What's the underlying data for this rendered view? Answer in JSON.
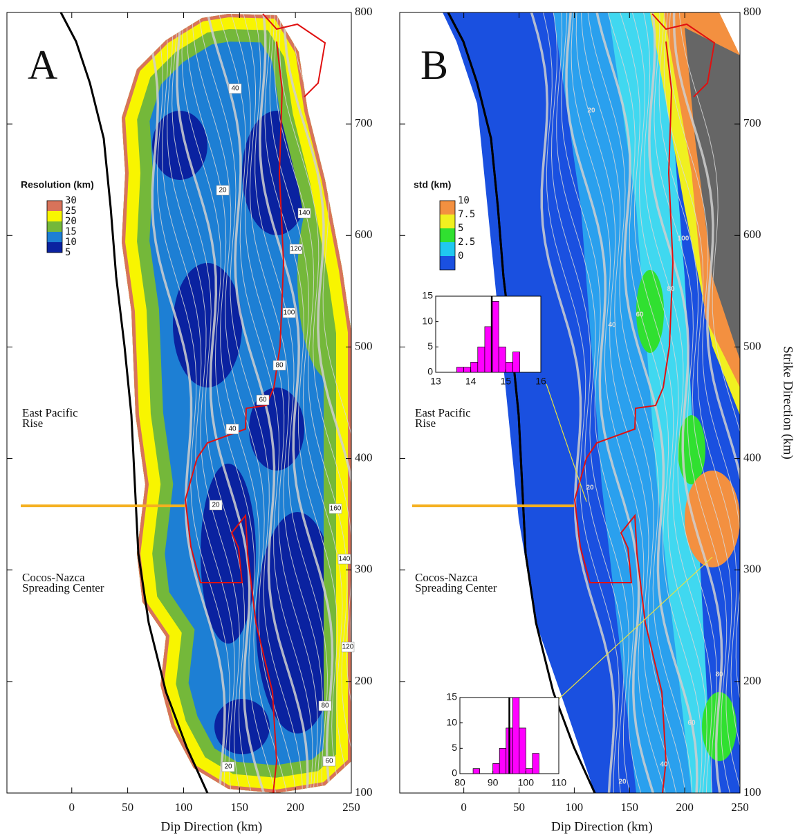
{
  "panels": [
    {
      "label": "A",
      "xlim": [
        -58,
        250
      ],
      "ylim": [
        100,
        800
      ],
      "xticks": [
        0,
        50,
        100,
        150,
        200,
        250
      ],
      "yticks": [
        100,
        200,
        300,
        400,
        500,
        600,
        700,
        800
      ],
      "xlabel": "Dip Direction (km)",
      "legend": {
        "title": "Resolution (km)",
        "levels": [
          30,
          25,
          20,
          15,
          10,
          5
        ],
        "colors": [
          "#d8735a",
          "#f8f500",
          "#74b83a",
          "#1d7fd4",
          "#0a22a0"
        ]
      },
      "places": [
        [
          "East Pacific",
          "Rise"
        ],
        [
          "Cocos-Nazca",
          "Spreading Center"
        ]
      ],
      "contour_labels": [
        "40",
        "20",
        "140",
        "120",
        "100",
        "80",
        "60",
        "40",
        "20",
        "160",
        "140",
        "120",
        "80",
        "60",
        "20"
      ]
    },
    {
      "label": "B",
      "xlim": [
        -58,
        250
      ],
      "ylim": [
        100,
        800
      ],
      "xticks": [
        0,
        50,
        100,
        150,
        200,
        250
      ],
      "yticks": [
        100,
        200,
        300,
        400,
        500,
        600,
        700,
        800
      ],
      "xlabel": "Dip Direction (km)",
      "ylabel": "Strike Direction (km)",
      "legend": {
        "title": "std (km)",
        "levels": [
          10,
          7.5,
          5,
          2.5,
          0
        ],
        "colors": [
          "#f39040",
          "#f0f020",
          "#30e030",
          "#20c8f0",
          "#1a50e0"
        ]
      },
      "places": [
        [
          "East Pacific",
          "Rise"
        ],
        [
          "Cocos-Nazca",
          "Spreading Center"
        ]
      ],
      "contour_labels": [
        "20",
        "100",
        "80",
        "60",
        "40",
        "20",
        "80",
        "60",
        "40",
        "20"
      ]
    }
  ],
  "insets": [
    {
      "type": "histogram",
      "bins": [
        13.6,
        13.8,
        14.0,
        14.2,
        14.4,
        14.6,
        14.8,
        15.0,
        15.2,
        15.4
      ],
      "counts": [
        1,
        1,
        2,
        5,
        9,
        14,
        5,
        2,
        4
      ],
      "mean": 14.6,
      "color": "#ff00ff",
      "xlim": [
        13,
        16
      ],
      "ylim": [
        0,
        15
      ],
      "xticks": [
        13,
        14,
        15,
        16
      ],
      "yticks": [
        0,
        5,
        10,
        15
      ]
    },
    {
      "type": "histogram",
      "bins": [
        84,
        86,
        88,
        90,
        92,
        94,
        96,
        98,
        100,
        102,
        104
      ],
      "counts": [
        1,
        0,
        0,
        2,
        5,
        9,
        15,
        9,
        1,
        4
      ],
      "mean": 95,
      "color": "#ff00ff",
      "xlim": [
        80,
        110
      ],
      "ylim": [
        0,
        15
      ],
      "xticks": [
        80,
        90,
        100,
        110
      ],
      "yticks": [
        0,
        5,
        10,
        15
      ]
    }
  ]
}
